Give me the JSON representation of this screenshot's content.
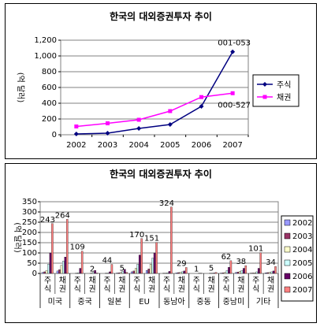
{
  "chart_data": [
    {
      "type": "line",
      "title": "한국의 대외증권투자 추이",
      "ylabel": "(억 달러)",
      "x": [
        "2002",
        "2003",
        "2004",
        "2005",
        "2006",
        "2007"
      ],
      "ylim": [
        0,
        1200
      ],
      "yticks": [
        "0",
        "200",
        "400",
        "600",
        "800",
        "1,000",
        "1,200"
      ],
      "grid": true,
      "legend_position": "right",
      "series": [
        {
          "name": "주식",
          "color": "#000080",
          "marker": "diamond",
          "values": [
            10,
            20,
            80,
            130,
            360,
            1053
          ]
        },
        {
          "name": "채권",
          "color": "#ff00ff",
          "marker": "square",
          "values": [
            105,
            145,
            190,
            300,
            478,
            527
          ]
        }
      ],
      "annotations": [
        {
          "text": "001-053",
          "series": "주식",
          "x": "2007",
          "color": "#4a6fb5"
        },
        {
          "text": "000-527",
          "series": "채권",
          "x": "2007",
          "color": "#e07b00"
        }
      ]
    },
    {
      "type": "bar",
      "title": "한국의 대외증권투자 추이",
      "ylabel": "(억 달러)",
      "ylim": [
        0,
        350
      ],
      "yticks": [
        "0",
        "50",
        "100",
        "150",
        "200",
        "250",
        "300",
        "350"
      ],
      "grid": true,
      "legend_position": "right",
      "regions": [
        "미국",
        "중국",
        "일본",
        "EU",
        "동남아",
        "중동",
        "중남미",
        "기타"
      ],
      "subcategories": [
        "주식",
        "채권"
      ],
      "series": [
        {
          "name": "2002",
          "color": "#9999ff",
          "values": [
            5,
            12,
            0,
            0,
            0,
            2,
            8,
            15,
            0,
            3,
            0,
            0,
            2,
            5,
            1,
            3
          ]
        },
        {
          "name": "2003",
          "color": "#993366",
          "values": [
            8,
            18,
            0,
            0,
            0,
            3,
            12,
            22,
            1,
            4,
            0,
            0,
            3,
            7,
            2,
            4
          ]
        },
        {
          "name": "2004",
          "color": "#ffffcc",
          "values": [
            15,
            40,
            1,
            2,
            1,
            5,
            25,
            45,
            1,
            6,
            0,
            1,
            5,
            10,
            3,
            6
          ]
        },
        {
          "name": "2005",
          "color": "#ccffff",
          "values": [
            45,
            60,
            3,
            5,
            2,
            10,
            45,
            75,
            3,
            8,
            0,
            1,
            15,
            15,
            8,
            8
          ]
        },
        {
          "name": "2006",
          "color": "#660066",
          "values": [
            100,
            80,
            25,
            15,
            8,
            20,
            90,
            100,
            10,
            12,
            1,
            2,
            30,
            25,
            25,
            12
          ]
        },
        {
          "name": "2007",
          "color": "#ff8080",
          "values": [
            243,
            264,
            109,
            2,
            44,
            5,
            170,
            151,
            324,
            29,
            1,
            5,
            62,
            38,
            101,
            34
          ]
        }
      ],
      "data_labels_2007": [
        "243",
        "264",
        "109",
        "2",
        "44",
        "5",
        "170",
        "151",
        "324",
        "29",
        "1",
        "5",
        "62",
        "38",
        "101",
        "34"
      ]
    }
  ]
}
